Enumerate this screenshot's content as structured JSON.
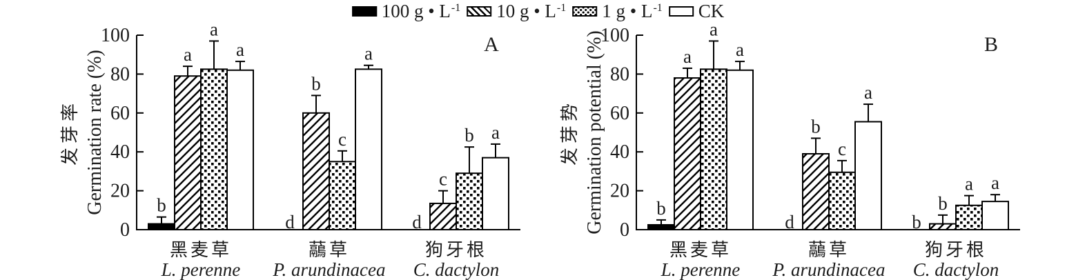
{
  "page": {
    "background": "#ffffff",
    "ink": "#000000",
    "text_color": "#1c1c1c"
  },
  "legend": {
    "items": [
      {
        "name": "100g",
        "swatch": "solid",
        "label": "100 g • L",
        "sup": "-1"
      },
      {
        "name": "10g",
        "swatch": "diagonal",
        "label": "10 g • L",
        "sup": "-1"
      },
      {
        "name": "1g",
        "swatch": "dots",
        "label": "1 g • L",
        "sup": "-1"
      },
      {
        "name": "ck",
        "swatch": "white",
        "label": "CK",
        "sup": ""
      }
    ]
  },
  "chart_data": [
    {
      "type": "bar",
      "panel_label": "A",
      "ylabel_zh": "发芽率",
      "ylabel_en": "Germination rate (%)",
      "ylim": [
        0,
        100
      ],
      "yticks": [
        0,
        20,
        40,
        60,
        80,
        100
      ],
      "grid": false,
      "legend_position": "top-center-shared",
      "categories": [
        {
          "zh": "黑麦草",
          "latin": "L. perenne"
        },
        {
          "zh": "虉草",
          "latin": "P. arundinacea"
        },
        {
          "zh": "狗牙根",
          "latin": "C. dactylon"
        }
      ],
      "series": [
        {
          "name": "100 g•L-1",
          "pattern": "solid",
          "values": [
            3,
            0,
            0
          ],
          "errors": [
            3.5,
            0,
            0
          ],
          "letters": [
            "b",
            "d",
            "d"
          ]
        },
        {
          "name": "10 g•L-1",
          "pattern": "diagonal",
          "values": [
            79,
            60,
            13.5
          ],
          "errors": [
            5,
            9,
            6.5
          ],
          "letters": [
            "a",
            "b",
            "c"
          ]
        },
        {
          "name": "1 g•L-1",
          "pattern": "dots",
          "values": [
            82.5,
            35,
            29
          ],
          "errors": [
            14.5,
            5.5,
            13.5
          ],
          "letters": [
            "a",
            "c",
            "b"
          ]
        },
        {
          "name": "CK",
          "pattern": "white",
          "values": [
            82,
            82.5,
            37
          ],
          "errors": [
            4.5,
            2,
            7
          ],
          "letters": [
            "a",
            "a",
            "a"
          ]
        }
      ]
    },
    {
      "type": "bar",
      "panel_label": "B",
      "ylabel_zh": "发芽势",
      "ylabel_en": "Germination potential (%)",
      "ylim": [
        0,
        100
      ],
      "yticks": [
        0,
        20,
        40,
        60,
        80,
        100
      ],
      "grid": false,
      "legend_position": "top-center-shared",
      "categories": [
        {
          "zh": "黑麦草",
          "latin": "L. perenne"
        },
        {
          "zh": "虉草",
          "latin": "P. arundinacea"
        },
        {
          "zh": "狗牙根",
          "latin": "C. dactylon"
        }
      ],
      "series": [
        {
          "name": "100 g•L-1",
          "pattern": "solid",
          "values": [
            2.5,
            0,
            0
          ],
          "errors": [
            2.5,
            0,
            0
          ],
          "letters": [
            "b",
            "d",
            "b"
          ]
        },
        {
          "name": "10 g•L-1",
          "pattern": "diagonal",
          "values": [
            78,
            39,
            3
          ],
          "errors": [
            5,
            8,
            4.5
          ],
          "letters": [
            "a",
            "b",
            "b"
          ]
        },
        {
          "name": "1 g•L-1",
          "pattern": "dots",
          "values": [
            82.5,
            29.5,
            12.5
          ],
          "errors": [
            14.5,
            6,
            5
          ],
          "letters": [
            "a",
            "c",
            "a"
          ]
        },
        {
          "name": "CK",
          "pattern": "white",
          "values": [
            82,
            55.5,
            14.5
          ],
          "errors": [
            4.5,
            9,
            3.5
          ],
          "letters": [
            "a",
            "a",
            "a"
          ]
        }
      ]
    }
  ]
}
